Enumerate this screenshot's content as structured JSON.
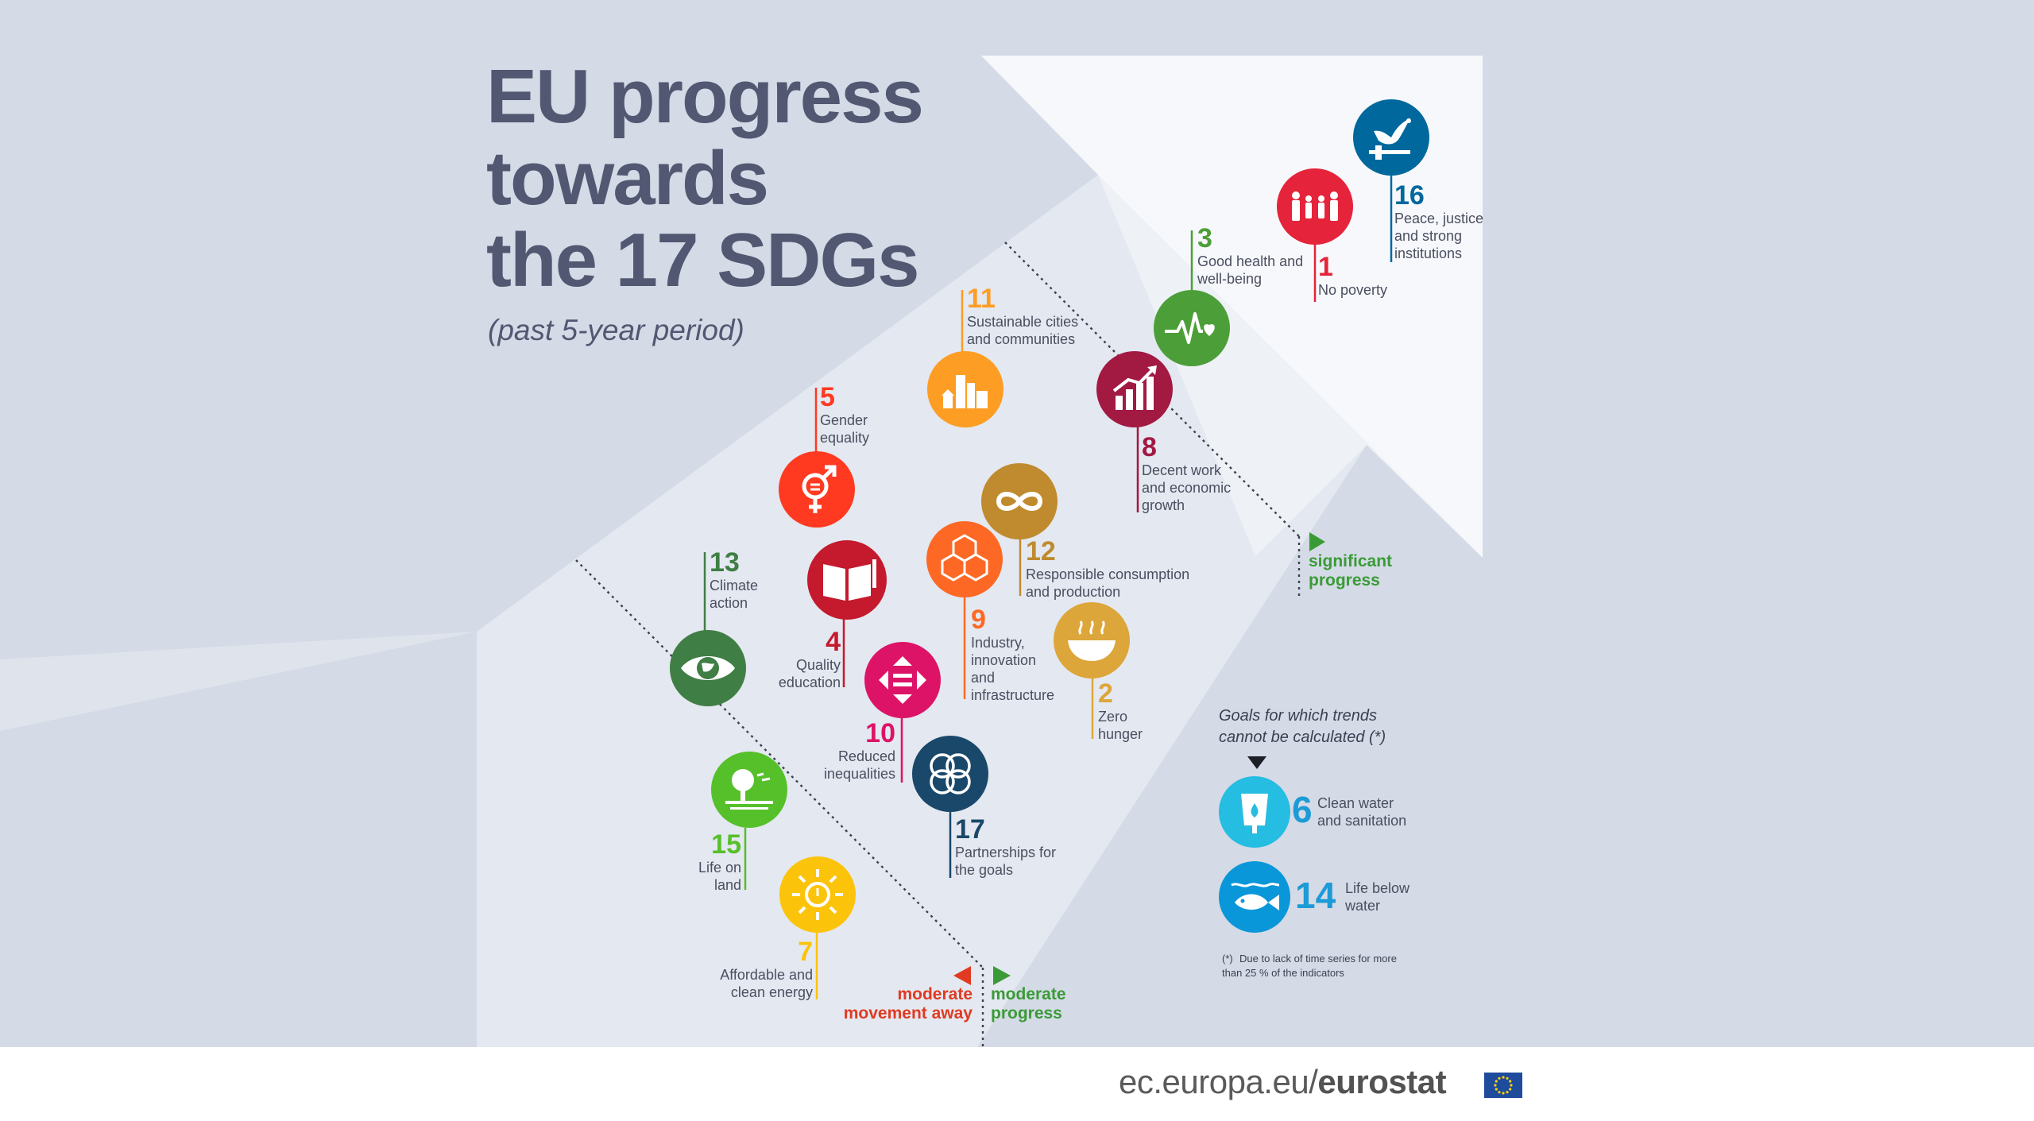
{
  "title_lines": [
    "EU progress",
    "towards",
    "the 17 SDGs"
  ],
  "subtitle": "(past 5-year period)",
  "goals": {
    "g1": {
      "num": "1",
      "label": "No poverty",
      "color": "#e5243b",
      "icon": "family-icon"
    },
    "g2": {
      "num": "2",
      "label": "Zero hunger",
      "color": "#dda63a",
      "icon": "bowl-icon"
    },
    "g3": {
      "num": "3",
      "label": "Good health and well-being",
      "color": "#4c9f38",
      "icon": "heartbeat-icon"
    },
    "g4": {
      "num": "4",
      "label": "Quality education",
      "color": "#c5192d",
      "icon": "book-icon"
    },
    "g5": {
      "num": "5",
      "label": "Gender equality",
      "color": "#ff3a21",
      "icon": "gender-icon"
    },
    "g7": {
      "num": "7",
      "label": "Affordable and clean energy",
      "color": "#fcc30b",
      "icon": "sun-icon"
    },
    "g8": {
      "num": "8",
      "label": "Decent work and economic growth",
      "color": "#a21942",
      "icon": "growth-chart-icon"
    },
    "g9": {
      "num": "9",
      "label": "Industry, innovation and infrastructure",
      "color": "#fd6925",
      "icon": "cubes-icon"
    },
    "g10": {
      "num": "10",
      "label": "Reduced inequalities",
      "color": "#dd1367",
      "icon": "equality-arrows-icon"
    },
    "g11": {
      "num": "11",
      "label": "Sustainable cities and communities",
      "color": "#fd9d24",
      "icon": "city-icon"
    },
    "g12": {
      "num": "12",
      "label": "Responsible consumption and production",
      "color": "#bf8b2e",
      "icon": "infinity-icon"
    },
    "g13": {
      "num": "13",
      "label": "Climate action",
      "color": "#3f7e44",
      "icon": "eye-globe-icon"
    },
    "g15": {
      "num": "15",
      "label": "Life on land",
      "color": "#56c02b",
      "icon": "tree-icon"
    },
    "g16": {
      "num": "16",
      "label": "Peace, justice and strong institutions",
      "color": "#00689d",
      "icon": "dove-icon"
    },
    "g17": {
      "num": "17",
      "label": "Partnerships for the goals",
      "color": "#19486a",
      "icon": "rings-icon"
    }
  },
  "zones": {
    "significant": "significant progress",
    "moderate_progress": "moderate progress",
    "moderate_away": "moderate movement away"
  },
  "not_calculated": {
    "heading": "Goals for which trends cannot be calculated  (*)",
    "items": [
      {
        "num": "6",
        "label": "Clean water and sanitation",
        "color": "#26bde2",
        "icon": "water-drop-icon"
      },
      {
        "num": "14",
        "label": "Life below water",
        "color": "#0a97d9",
        "icon": "fish-icon"
      }
    ],
    "footnote_marker": "(*)",
    "footnote": "Due to lack of time series for more than 25 % of the indicators"
  },
  "footer": {
    "domain": "ec.europa.eu/",
    "brand": "eurostat"
  }
}
